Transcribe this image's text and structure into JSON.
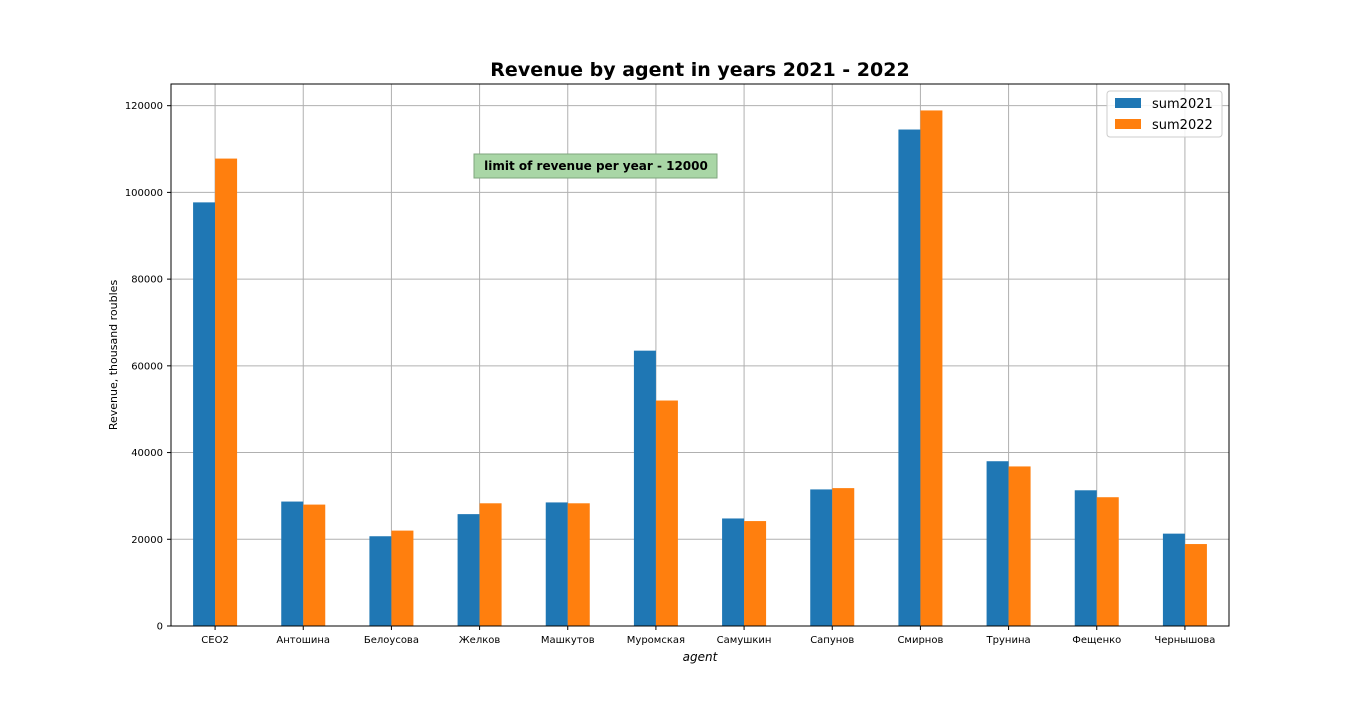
{
  "chart_data": {
    "type": "bar",
    "title": "Revenue by agent in years 2021 - 2022",
    "xlabel": "agent",
    "ylabel": "Revenue, thousand roubles",
    "ylim": [
      0,
      125000
    ],
    "yticks": [
      0,
      20000,
      40000,
      60000,
      80000,
      100000,
      120000
    ],
    "grid": true,
    "legend_position": "top-right",
    "categories": [
      "CEO2",
      "Антошина",
      "Белоусова",
      "Желков",
      "Машкутов",
      "Муромская",
      "Самушкин",
      "Сапунов",
      "Смирнов",
      "Трунина",
      "Фещенко",
      "Чернышова"
    ],
    "series": [
      {
        "name": "sum2021",
        "color": "#1f77b4",
        "values": [
          97700,
          28700,
          20700,
          25800,
          28500,
          63500,
          24800,
          31500,
          114500,
          38000,
          31300,
          21300
        ]
      },
      {
        "name": "sum2022",
        "color": "#ff7f0e",
        "values": [
          107800,
          28000,
          22000,
          28300,
          28300,
          52000,
          24200,
          31800,
          118900,
          36800,
          29700,
          18900
        ]
      }
    ],
    "annotation": {
      "text": "limit of revenue per year - 12000",
      "box_color": "#a9d6a6"
    }
  }
}
